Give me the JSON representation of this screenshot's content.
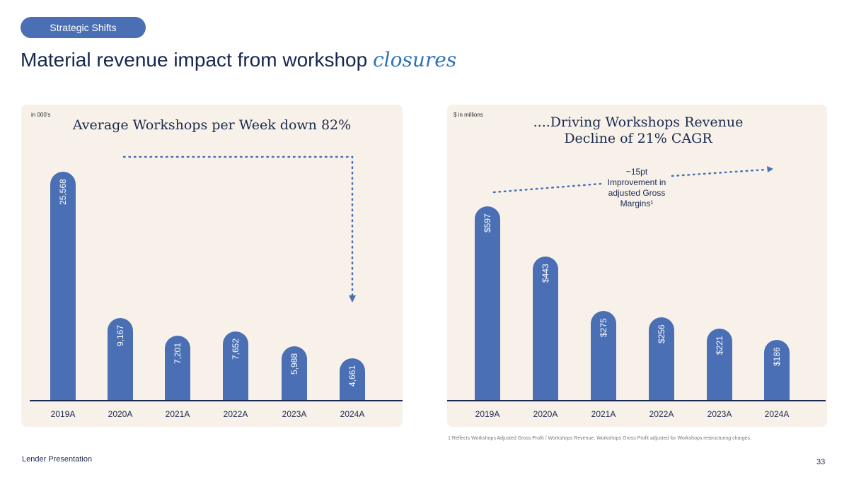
{
  "header": {
    "tag": "Strategic Shifts",
    "title_prefix": "Material revenue impact from workshop ",
    "title_accent": "closures"
  },
  "chart_data": [
    {
      "type": "bar",
      "title": "Average Workshops per Week down 82%",
      "unit_note": "in 000's",
      "categories": [
        "2019A",
        "2020A",
        "2021A",
        "2022A",
        "2023A",
        "2024A"
      ],
      "values": [
        25568,
        9167,
        7201,
        7652,
        5988,
        4661
      ],
      "value_labels": [
        "25,568",
        "9,167",
        "7,201",
        "7,652",
        "5,988",
        "4,661"
      ],
      "xlabel": "",
      "ylabel": "",
      "ylim": [
        0,
        25568
      ]
    },
    {
      "type": "bar",
      "title": "....Driving Workshops Revenue Decline of 21% CAGR",
      "unit_note": "$ in millions",
      "categories": [
        "2019A",
        "2020A",
        "2021A",
        "2022A",
        "2023A",
        "2024A"
      ],
      "values": [
        597,
        443,
        275,
        256,
        221,
        186
      ],
      "value_labels": [
        "$597",
        "$443",
        "$275",
        "$256",
        "$221",
        "$186"
      ],
      "annotation": "~15pt Improvement in adjusted Gross Margins¹",
      "xlabel": "",
      "ylabel": "",
      "ylim": [
        0,
        597
      ]
    }
  ],
  "colors": {
    "bar": "#4a6fb5",
    "panel": "#f7f1ea",
    "navy": "#1b2a4e",
    "accent": "#2f72b8"
  },
  "footnote": "1 Reflects Workshops Adjusted Gross Profit / Workshops Revenue. Workshops Gross Profit adjusted for Workshops restructuring charges.",
  "footer": {
    "label": "Lender Presentation",
    "page": "33"
  }
}
